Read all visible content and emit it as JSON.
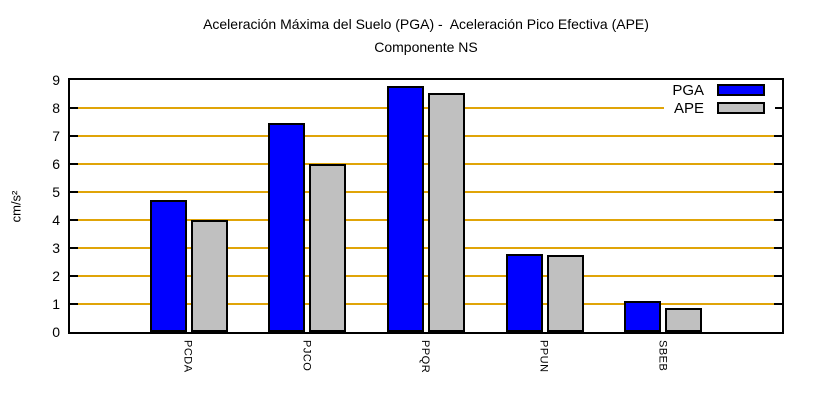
{
  "chart_data": {
    "type": "bar",
    "title": "Aceleración Máxima del Suelo (PGA) -  Aceleración Pico Efectiva (APE)",
    "subtitle": "Componente NS",
    "ylabel": "cm/s²",
    "xlabel": "",
    "categories": [
      "PCDA",
      "PJCO",
      "PPQR",
      "PPUN",
      "SBEB"
    ],
    "series": [
      {
        "name": "PGA",
        "color": "#0000ff",
        "values": [
          4.7,
          7.45,
          8.8,
          2.8,
          1.1
        ]
      },
      {
        "name": "APE",
        "color": "#c0c0c0",
        "values": [
          4.0,
          6.0,
          8.55,
          2.75,
          0.85
        ]
      }
    ],
    "ylim": [
      0,
      9
    ],
    "yticks": [
      0,
      1,
      2,
      3,
      4,
      5,
      6,
      7,
      8,
      9
    ],
    "grid": true,
    "grid_color": "#e0a408",
    "legend_position": "top-right-inside",
    "bar_outline_color": "#000000"
  }
}
